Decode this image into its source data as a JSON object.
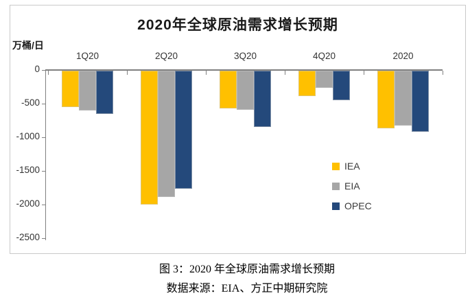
{
  "chart": {
    "title": "2020年全球原油需求增长预期",
    "unit_label": "万桶/日"
  },
  "chart_data": {
    "type": "bar",
    "title": "2020年全球原油需求增长预期",
    "ylabel": "万桶/日",
    "categories": [
      "1Q20",
      "2Q20",
      "3Q20",
      "4Q20",
      "2020"
    ],
    "series": [
      {
        "name": "IEA",
        "color": "#FFC000",
        "values": [
          -540,
          -1990,
          -560,
          -380,
          -860
        ]
      },
      {
        "name": "EIA",
        "color": "#A6A6A6",
        "values": [
          -590,
          -1880,
          -580,
          -250,
          -820
        ]
      },
      {
        "name": "OPEC",
        "color": "#24497B",
        "values": [
          -640,
          -1750,
          -840,
          -440,
          -910
        ]
      }
    ],
    "y_ticks": [
      0,
      -500,
      -1000,
      -1500,
      -2000,
      -2500
    ],
    "ylim": [
      -2500,
      0
    ],
    "grid": false,
    "legend_position": "center-right",
    "bar_orientation": "vertical",
    "category_labels_position": "top"
  },
  "captions": {
    "figure": "图 3：2020 年全球原油需求增长预期",
    "source": "数据来源：EIA、方正中期研究院"
  }
}
